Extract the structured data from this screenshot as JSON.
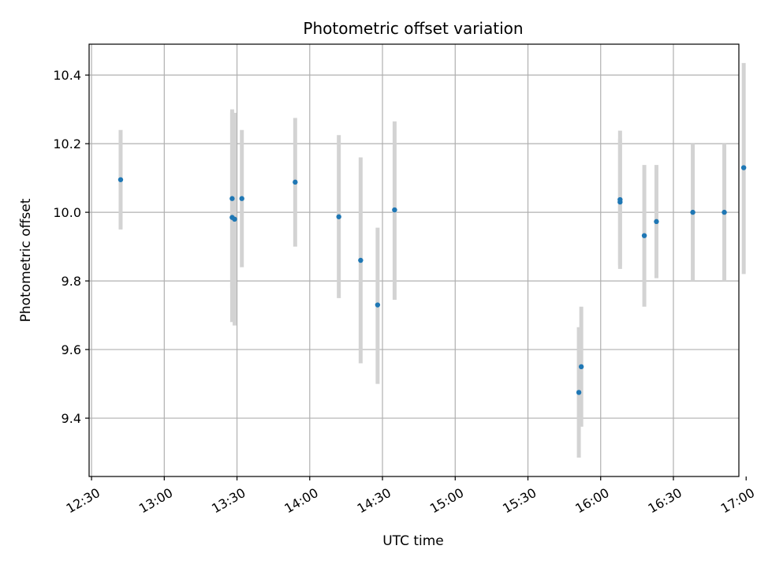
{
  "chart_data": {
    "type": "scatter",
    "title": "Photometric offset variation",
    "xlabel": "UTC time",
    "ylabel": "Photometric offset",
    "xlim": [
      "12:29",
      "16:57"
    ],
    "ylim": [
      9.23,
      10.49
    ],
    "grid": true,
    "x_ticks": [
      "12:30",
      "13:00",
      "13:30",
      "14:00",
      "14:30",
      "15:00",
      "15:30",
      "16:00",
      "16:30",
      "17:00"
    ],
    "y_ticks": [
      9.4,
      9.6,
      9.8,
      10.0,
      10.2,
      10.4
    ],
    "y_tick_labels": [
      "9.4",
      "9.6",
      "9.8",
      "10.0",
      "10.2",
      "10.4"
    ],
    "points": [
      {
        "t": "12:42",
        "y": 10.095,
        "lo": 9.95,
        "hi": 10.24
      },
      {
        "t": "13:28",
        "y": 10.04,
        "lo": 9.78,
        "hi": 10.3
      },
      {
        "t": "13:28",
        "y": 9.985,
        "lo": 9.68,
        "hi": 10.29
      },
      {
        "t": "13:29",
        "y": 9.98,
        "lo": 9.67,
        "hi": 10.29
      },
      {
        "t": "13:32",
        "y": 10.04,
        "lo": 9.84,
        "hi": 10.24
      },
      {
        "t": "13:54",
        "y": 10.088,
        "lo": 9.9,
        "hi": 10.275
      },
      {
        "t": "14:12",
        "y": 9.987,
        "lo": 9.75,
        "hi": 10.225
      },
      {
        "t": "14:21",
        "y": 9.86,
        "lo": 9.56,
        "hi": 10.16
      },
      {
        "t": "14:28",
        "y": 9.73,
        "lo": 9.5,
        "hi": 9.955
      },
      {
        "t": "14:35",
        "y": 10.007,
        "lo": 9.745,
        "hi": 10.265
      },
      {
        "t": "15:51",
        "y": 9.475,
        "lo": 9.285,
        "hi": 9.665
      },
      {
        "t": "15:52",
        "y": 9.55,
        "lo": 9.375,
        "hi": 9.725
      },
      {
        "t": "16:08",
        "y": 10.03,
        "lo": 9.845,
        "hi": 10.215
      },
      {
        "t": "16:08",
        "y": 10.037,
        "lo": 9.835,
        "hi": 10.238
      },
      {
        "t": "16:18",
        "y": 9.932,
        "lo": 9.725,
        "hi": 10.138
      },
      {
        "t": "16:23",
        "y": 9.973,
        "lo": 9.808,
        "hi": 10.138
      },
      {
        "t": "16:38",
        "y": 10.0,
        "lo": 9.8,
        "hi": 10.2
      },
      {
        "t": "16:51",
        "y": 10.0,
        "lo": 9.8,
        "hi": 10.2
      },
      {
        "t": "16:59",
        "y": 10.13,
        "lo": 9.82,
        "hi": 10.435
      }
    ],
    "point_color": "#1f77b4",
    "errorbar_color": "#d3d3d3"
  }
}
